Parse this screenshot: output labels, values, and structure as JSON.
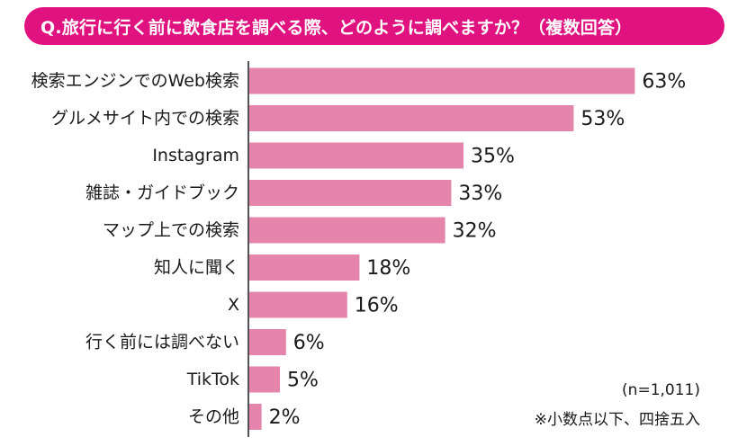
{
  "title": "Q.旅行に行く前に飲食店を調べる際、どのように調べますか？（複数回答）",
  "sample_note": "(n=1,011)",
  "rounding_note": "※小数点以下、四捨五入",
  "colors": {
    "banner": "#e0127f",
    "bar": "#e585ab",
    "axis": "#1a1a1a"
  },
  "chart_data": {
    "type": "bar",
    "orientation": "horizontal",
    "title": "Q.旅行に行く前に飲食店を調べる際、どのように調べますか？（複数回答）",
    "categories": [
      "検索エンジンでのWeb検索",
      "グルメサイト内での検索",
      "Instagram",
      "雑誌・ガイドブック",
      "マップ上での検索",
      "知人に聞く",
      "X",
      "行く前には調べない",
      "TikTok",
      "その他"
    ],
    "values": [
      63,
      53,
      35,
      33,
      32,
      18,
      16,
      6,
      5,
      2
    ],
    "value_labels": [
      "63%",
      "53%",
      "35%",
      "33%",
      "32%",
      "18%",
      "16%",
      "6%",
      "5%",
      "2%"
    ],
    "unit": "%",
    "xlim": [
      0,
      100
    ],
    "grid": false,
    "legend": "none"
  }
}
